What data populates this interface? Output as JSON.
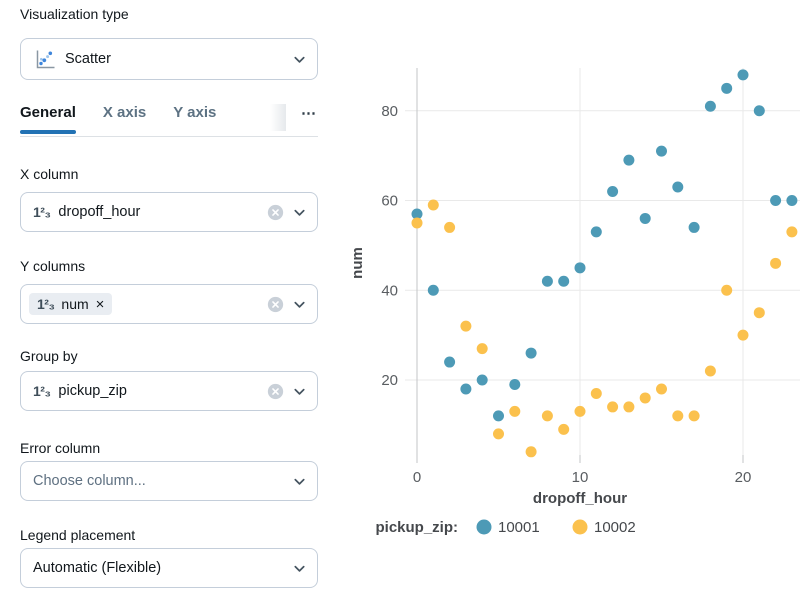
{
  "panel": {
    "viz_type": {
      "label": "Visualization type",
      "value": "Scatter"
    },
    "tabs": [
      "General",
      "X axis",
      "Y axis"
    ],
    "tabs_more": "⋯",
    "x_column": {
      "label": "X column",
      "type_icon": "1²₃",
      "value": "dropoff_hour"
    },
    "y_columns": {
      "label": "Y columns",
      "tag": {
        "type_icon": "1²₃",
        "value": "num",
        "remove_icon": "×"
      }
    },
    "group_by": {
      "label": "Group by",
      "type_icon": "1²₃",
      "value": "pickup_zip"
    },
    "error_column": {
      "label": "Error column",
      "placeholder": "Choose column..."
    },
    "legend_placement": {
      "label": "Legend placement",
      "value": "Automatic (Flexible)"
    }
  },
  "colors": {
    "accent": "#2272B4",
    "series_10001": "#4D9AB6",
    "series_10002": "#FBC14D",
    "gridline": "#E9E9E9",
    "zero_line": "#C3C5C7",
    "tick_text": "#595D61",
    "axis_title_text": "#45484C"
  },
  "chart_data": {
    "type": "scatter",
    "title": "",
    "xlabel": "dropoff_hour",
    "ylabel": "num",
    "x": [
      0,
      1,
      2,
      3,
      4,
      5,
      6,
      7,
      8,
      9,
      10,
      11,
      12,
      13,
      14,
      15,
      16,
      17,
      18,
      19,
      20,
      21,
      22,
      23
    ],
    "series": [
      {
        "name": "10001",
        "color": "#4D9AB6",
        "values": [
          57,
          40,
          24,
          18,
          20,
          12,
          19,
          26,
          42,
          42,
          45,
          53,
          62,
          69,
          56,
          71,
          63,
          54,
          81,
          85,
          88,
          80,
          60,
          60
        ]
      },
      {
        "name": "10002",
        "color": "#FBC14D",
        "values": [
          55,
          59,
          54,
          32,
          27,
          8,
          13,
          4,
          12,
          9,
          13,
          17,
          14,
          14,
          16,
          18,
          12,
          12,
          22,
          40,
          30,
          35,
          46,
          53
        ]
      }
    ],
    "xticks": [
      0,
      10,
      20
    ],
    "yticks": [
      20,
      40,
      60,
      80
    ],
    "xlim": [
      -0.8,
      23.6
    ],
    "ylim": [
      2,
      92
    ],
    "grid": true,
    "legend": {
      "title": "pickup_zip:",
      "position": "bottom"
    }
  }
}
